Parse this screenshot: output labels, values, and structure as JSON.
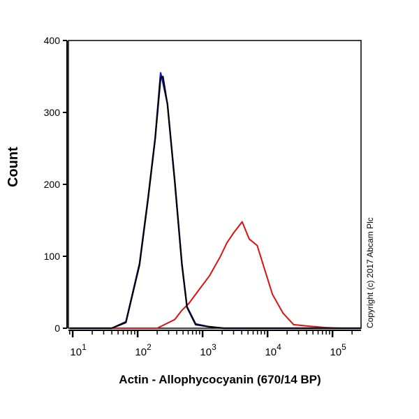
{
  "chart_data": {
    "type": "line",
    "title": "",
    "xlabel": "Actin - Allophycocyanin (670/14 BP)",
    "ylabel": "Count",
    "xscale": "log",
    "xlim": [
      8.6,
      275000
    ],
    "ylim": [
      0,
      400
    ],
    "yticks": [
      0,
      100,
      200,
      300,
      400
    ],
    "xticks": [
      {
        "value": 10,
        "base": "10",
        "exp": "1"
      },
      {
        "value": 100,
        "base": "10",
        "exp": "2"
      },
      {
        "value": 1000,
        "base": "10",
        "exp": "3"
      },
      {
        "value": 10000,
        "base": "10",
        "exp": "4"
      },
      {
        "value": 100000,
        "base": "10",
        "exp": "5"
      }
    ],
    "grid": false,
    "series": [
      {
        "color": "#e01010",
        "x": [
          9,
          200,
          372,
          480,
          610,
          840,
          1280,
          1860,
          2380,
          3030,
          4070,
          5230,
          6920,
          9300,
          11900,
          17300,
          25200,
          40800,
          75800,
          126000,
          275000
        ],
        "y": [
          0,
          0,
          12,
          25,
          34,
          51,
          73,
          99,
          119,
          133,
          148,
          124,
          115,
          78,
          47,
          21,
          5,
          3,
          1,
          0,
          0
        ]
      },
      {
        "color": "#1010e0",
        "x": [
          9,
          40,
          66,
          107,
          145,
          186,
          226,
          240,
          288,
          372,
          480,
          575,
          780,
          1260,
          2090,
          275000
        ],
        "y": [
          0,
          0,
          9,
          90,
          182,
          265,
          355,
          345,
          312,
          206,
          90,
          30,
          6,
          2,
          0,
          0
        ]
      },
      {
        "color": "#000000",
        "x": [
          9,
          40,
          66,
          107,
          145,
          186,
          226,
          245,
          288,
          372,
          480,
          575,
          780,
          1260,
          2090,
          275000
        ],
        "y": [
          0,
          0,
          8,
          88,
          180,
          263,
          348,
          350,
          311,
          204,
          88,
          29,
          5,
          2,
          0,
          0
        ]
      }
    ]
  },
  "copyright": "Copyright (c) 2017 Abcam Plc"
}
